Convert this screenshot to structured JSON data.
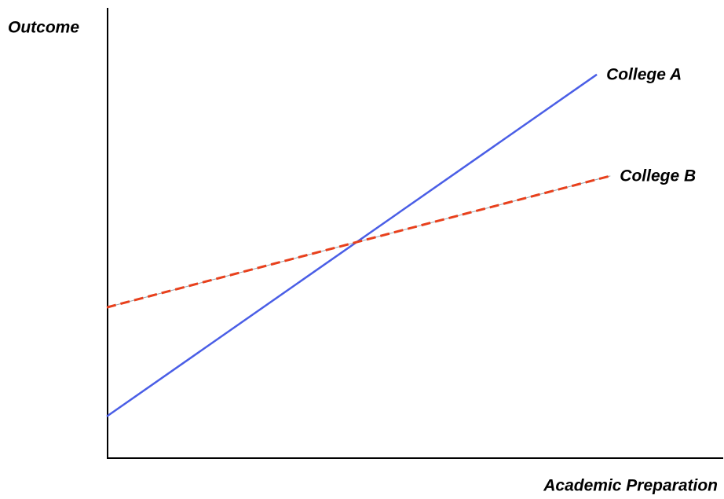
{
  "chart_data": {
    "type": "line",
    "x_label": "Academic Preparation",
    "y_label": "Outcome",
    "xlim": [
      0,
      100
    ],
    "ylim": [
      0,
      100
    ],
    "series": [
      {
        "name": "College A",
        "color": "#4a5ee6",
        "dashed": false,
        "x": [
          0,
          79.6
        ],
        "values": [
          9.3,
          85.5
        ]
      },
      {
        "name": "College B",
        "color": "#e8401c",
        "dashed": true,
        "x": [
          0,
          81.8
        ],
        "values": [
          33.6,
          62.9
        ]
      }
    ]
  }
}
